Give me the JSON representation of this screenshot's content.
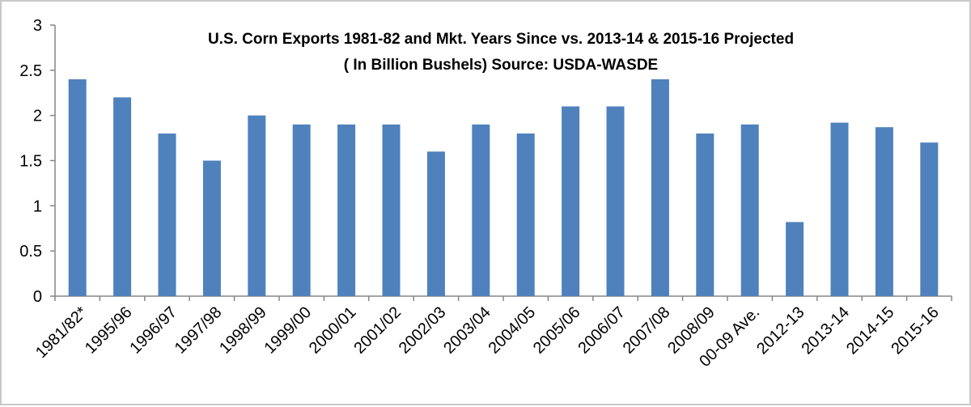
{
  "chart_data": {
    "type": "bar",
    "title": "U.S. Corn Exports 1981-82 and Mkt. Years Since vs. 2013-14  & 2015-16 Projected",
    "subtitle": "( In Billion Bushels) Source: USDA-WASDE",
    "xlabel": "",
    "ylabel": "",
    "ylim": [
      0,
      3
    ],
    "yticks": [
      "0",
      "0.5",
      "1",
      "1.5",
      "2",
      "2.5",
      "3"
    ],
    "grid": false,
    "legend": "none",
    "bar_color": "#4f81bd",
    "categories": [
      "1981/82*",
      "1995/96",
      "1996/97",
      "1997/98",
      "1998/99",
      "1999/00",
      "2000/01",
      "2001/02",
      "2002/03",
      "2003/04",
      "2004/05",
      "2005/06",
      "2006/07",
      "2007/08",
      "2008/09",
      "00-09 Ave.",
      "2012-13",
      "2013-14",
      "2014-15",
      "2015-16"
    ],
    "values": [
      2.4,
      2.2,
      1.8,
      1.5,
      2.0,
      1.9,
      1.9,
      1.9,
      1.6,
      1.9,
      1.8,
      2.1,
      2.1,
      2.4,
      1.8,
      1.9,
      0.82,
      1.92,
      1.87,
      1.7
    ]
  }
}
